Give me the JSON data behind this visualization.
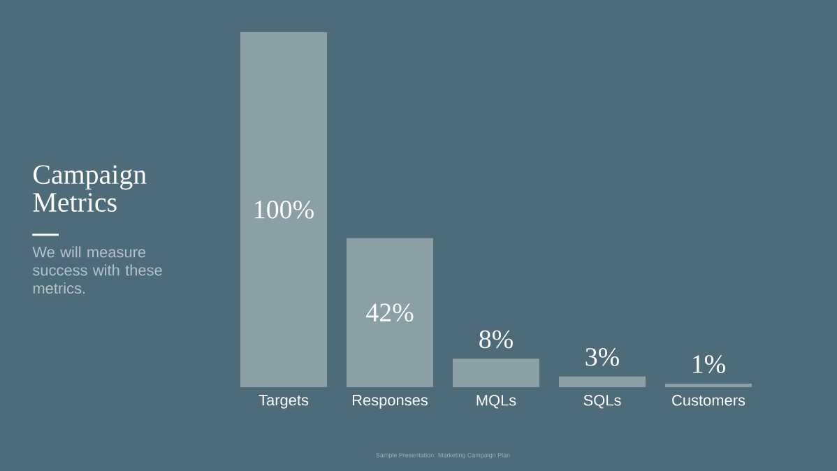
{
  "chart_data": {
    "type": "bar",
    "title": "Campaign Metrics",
    "subtitle": "We will measure success with these metrics.",
    "categories": [
      "Targets",
      "Responses",
      "MQLs",
      "SQLs",
      "Customers"
    ],
    "values": [
      100,
      42,
      8,
      3,
      1
    ],
    "value_labels": [
      "100%",
      "42%",
      "8%",
      "3%",
      "1%"
    ],
    "color": "#8b9fa7",
    "ylim": [
      0,
      100
    ],
    "annotations": [
      "Sample Presentation: Marketing Campaign Plan"
    ]
  }
}
